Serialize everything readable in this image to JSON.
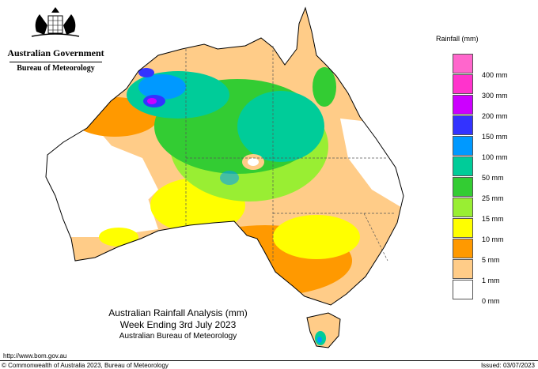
{
  "agency": {
    "government": "Australian Government",
    "bureau": "Bureau of Meteorology"
  },
  "map": {
    "title": "Australian Rainfall Analysis (mm)",
    "period": "Week Ending 3rd July 2023",
    "source": "Australian Bureau of Meteorology",
    "url": "http://www.bom.gov.au",
    "copyright": "© Commonwealth of Australia 2023, Bureau of Meteorology",
    "issued": "Issued: 03/07/2023"
  },
  "legend": {
    "title": "Rainfall (mm)",
    "items": [
      {
        "label": "",
        "color": "#ff66cc"
      },
      {
        "label": "400 mm",
        "color": "#ff33cc"
      },
      {
        "label": "300 mm",
        "color": "#cc00ff"
      },
      {
        "label": "200 mm",
        "color": "#3333ff"
      },
      {
        "label": "150 mm",
        "color": "#0099ff"
      },
      {
        "label": "100 mm",
        "color": "#00cc99"
      },
      {
        "label": "50 mm",
        "color": "#33cc33"
      },
      {
        "label": "25 mm",
        "color": "#99ee33"
      },
      {
        "label": "15 mm",
        "color": "#ffff00"
      },
      {
        "label": "10 mm",
        "color": "#ff9900"
      },
      {
        "label": "5 mm",
        "color": "#ffcc88"
      },
      {
        "label": "1 mm",
        "color": "#ffffff"
      },
      {
        "label": "0 mm",
        "color": "#ffffff"
      }
    ]
  }
}
